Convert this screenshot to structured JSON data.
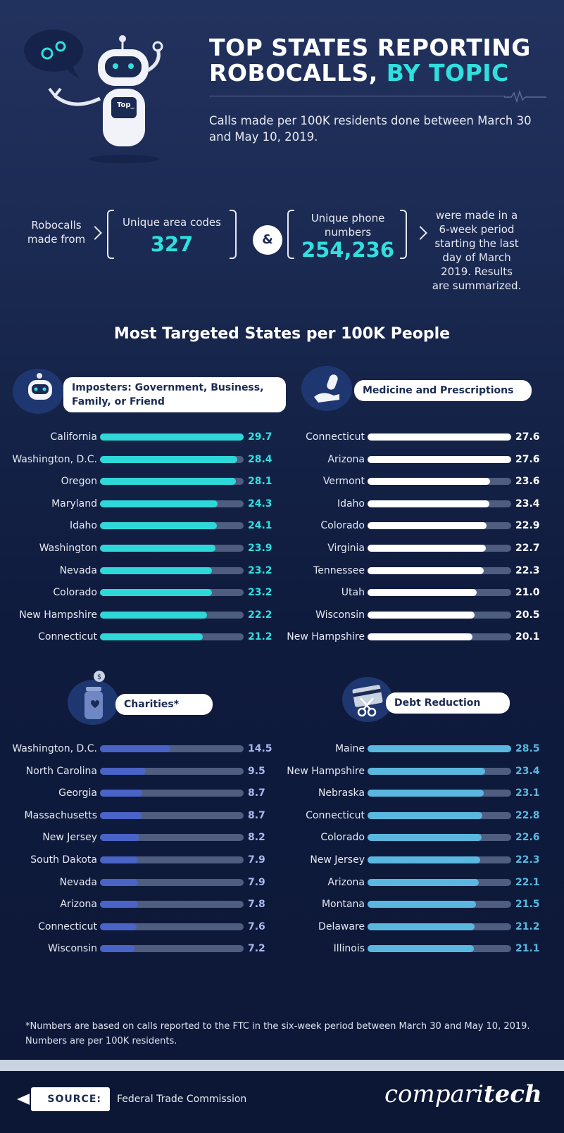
{
  "header": {
    "title_line1": "TOP STATES REPORTING",
    "title_line2_white": "ROBOCALLS, ",
    "title_line2_accent": "BY TOPIC",
    "subtitle": "Calls made per 100K residents done between March 30 and May 10, 2019.",
    "robot_screen_text": "Top_"
  },
  "stats": {
    "lead_text": "Robocalls made from",
    "area_codes_label": "Unique area codes",
    "area_codes_value": "327",
    "and": "&",
    "phone_numbers_label": "Unique phone numbers",
    "phone_numbers_value": "254,236",
    "tail_text": "were made in a 6-week period starting the last day of March 2019. Results are summarized."
  },
  "section_title": "Most Targeted States per 100K People",
  "colors": {
    "accent": "#2fe0de",
    "imposters": "#2fd8d8",
    "medicine": "#ffffff",
    "charities": "#4a63c7",
    "debt": "#5ab8e0",
    "track": "#4e5d80"
  },
  "chart_data": [
    {
      "type": "bar",
      "title": "Imposters: Government, Business, Family, or Friend",
      "icon": "robot-icon",
      "categories": [
        "California",
        "Washington, D.C.",
        "Oregon",
        "Maryland",
        "Idaho",
        "Washington",
        "Nevada",
        "Colorado",
        "New Hampshire",
        "Connecticut"
      ],
      "values": [
        "29.7",
        "28.4",
        "28.1",
        "24.3",
        "24.1",
        "23.9",
        "23.2",
        "23.2",
        "22.2",
        "21.2"
      ],
      "xlim": [
        0,
        29.7
      ]
    },
    {
      "type": "bar",
      "title": "Medicine and Prescriptions",
      "icon": "pill-hand-icon",
      "categories": [
        "Connecticut",
        "Arizona",
        "Vermont",
        "Idaho",
        "Colorado",
        "Virginia",
        "Tennessee",
        "Utah",
        "Wisconsin",
        "New Hampshire"
      ],
      "values": [
        "27.6",
        "27.6",
        "23.6",
        "23.4",
        "22.9",
        "22.7",
        "22.3",
        "21.0",
        "20.5",
        "20.1"
      ],
      "xlim": [
        0,
        27.6
      ]
    },
    {
      "type": "bar",
      "title": "Charities*",
      "icon": "donation-jar-icon",
      "categories": [
        "Washington, D.C.",
        "North Carolina",
        "Georgia",
        "Massachusetts",
        "New Jersey",
        "South Dakota",
        "Nevada",
        "Arizona",
        "Connecticut",
        "Wisconsin"
      ],
      "values": [
        "14.5",
        "9.5",
        "8.7",
        "8.7",
        "8.2",
        "7.9",
        "7.9",
        "7.8",
        "7.6",
        "7.2"
      ],
      "xlim": [
        0,
        29.7
      ]
    },
    {
      "type": "bar",
      "title": "Debt Reduction",
      "icon": "cut-card-icon",
      "categories": [
        "Maine",
        "New Hampshire",
        "Nebraska",
        "Connecticut",
        "Colorado",
        "New Jersey",
        "Arizona",
        "Montana",
        "Delaware",
        "Illinois"
      ],
      "values": [
        "28.5",
        "23.4",
        "23.1",
        "22.8",
        "22.6",
        "22.3",
        "22.1",
        "21.5",
        "21.2",
        "21.1"
      ],
      "xlim": [
        0,
        28.5
      ]
    }
  ],
  "footnote": "*Numbers are based on calls reported to the FTC in the six-week period between March 30 and May 10, 2019. Numbers are per 100K residents.",
  "footer": {
    "source_label": "SOURCE:",
    "source_text": "Federal Trade Commission",
    "brand_regular": "compari",
    "brand_bold": "tech"
  }
}
